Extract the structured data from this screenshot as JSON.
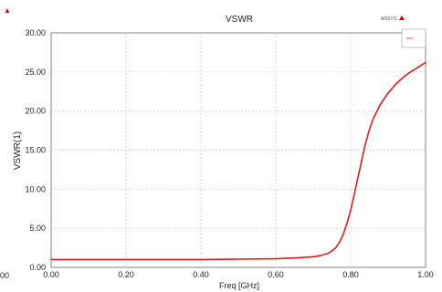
{
  "chart_data": {
    "type": "line",
    "title": "VSWR",
    "xlabel": "Freq [GHz]",
    "ylabel": "VSWR(1)",
    "xlim": [
      0.0,
      1.0
    ],
    "ylim": [
      0.0,
      30.0
    ],
    "x_ticks": [
      "0.00",
      "0.20",
      "0.40",
      "0.60",
      "0.80",
      "1.00"
    ],
    "y_ticks": [
      "0.00",
      "5.00",
      "10.00",
      "15.00",
      "20.00",
      "25.00",
      "30.00"
    ],
    "grid": true,
    "legend_position": "top-right",
    "series": [
      {
        "color": "#e8191f",
        "x": [
          0.0,
          0.1,
          0.2,
          0.3,
          0.4,
          0.5,
          0.6,
          0.65,
          0.7,
          0.72,
          0.74,
          0.75,
          0.76,
          0.77,
          0.78,
          0.79,
          0.8,
          0.81,
          0.82,
          0.83,
          0.84,
          0.85,
          0.86,
          0.88,
          0.9,
          0.92,
          0.94,
          0.96,
          0.98,
          1.0
        ],
        "y": [
          1.0,
          1.0,
          1.0,
          1.0,
          1.0,
          1.05,
          1.1,
          1.2,
          1.35,
          1.5,
          1.8,
          2.1,
          2.5,
          3.2,
          4.2,
          5.6,
          7.3,
          9.4,
          11.6,
          13.8,
          15.9,
          17.6,
          19.0,
          20.9,
          22.3,
          23.4,
          24.3,
          25.0,
          25.6,
          26.2
        ]
      }
    ]
  },
  "brand": {
    "logo_text": "ANSYS",
    "left_corner_mark": "▲",
    "left_edge_tick": "00"
  },
  "colors": {
    "series": "#e8191f",
    "accent": "#cc0000",
    "grid": "#c8c8c8",
    "axis": "#808080"
  }
}
